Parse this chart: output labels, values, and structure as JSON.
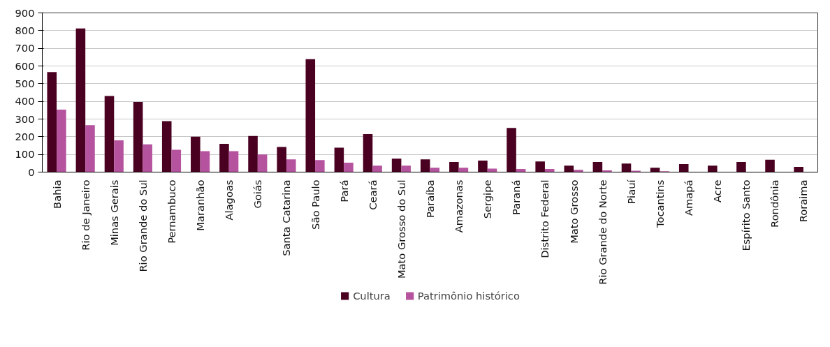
{
  "chart_data": {
    "type": "bar",
    "categories": [
      "Bahia",
      "Rio de Janeiro",
      "Minas Gerais",
      "Rio Grande do Sul",
      "Pernambuco",
      "Maranhão",
      "Alagoas",
      "Goiás",
      "Santa Catarina",
      "São Paulo",
      "Pará",
      "Ceará",
      "Mato Grosso do Sul",
      "Paraíba",
      "Amazonas",
      "Sergipe",
      "Paraná",
      "Distrito Federal",
      "Mato Grosso",
      "Rio Grande do Norte",
      "Piauí",
      "Tocantins",
      "Amapá",
      "Acre",
      "Espírito Santo",
      "Rondônia",
      "Roraima"
    ],
    "series": [
      {
        "name": "Cultura",
        "color": "#4a0020",
        "values": [
          565,
          812,
          430,
          397,
          288,
          200,
          160,
          204,
          142,
          638,
          138,
          215,
          76,
          72,
          57,
          65,
          250,
          60,
          37,
          57,
          48,
          25,
          45,
          37,
          57,
          70,
          30
        ]
      },
      {
        "name": "Patrimônio histórico",
        "color": "#b5539e",
        "values": [
          353,
          265,
          180,
          157,
          126,
          118,
          118,
          100,
          72,
          68,
          53,
          37,
          37,
          25,
          25,
          20,
          18,
          18,
          13,
          10,
          8,
          5,
          null,
          null,
          null,
          null,
          null
        ]
      }
    ],
    "ylim": [
      0,
      900
    ],
    "yticks": [
      0,
      100,
      200,
      300,
      400,
      500,
      600,
      700,
      800,
      900
    ],
    "grid": "y",
    "legend": "bottom"
  }
}
